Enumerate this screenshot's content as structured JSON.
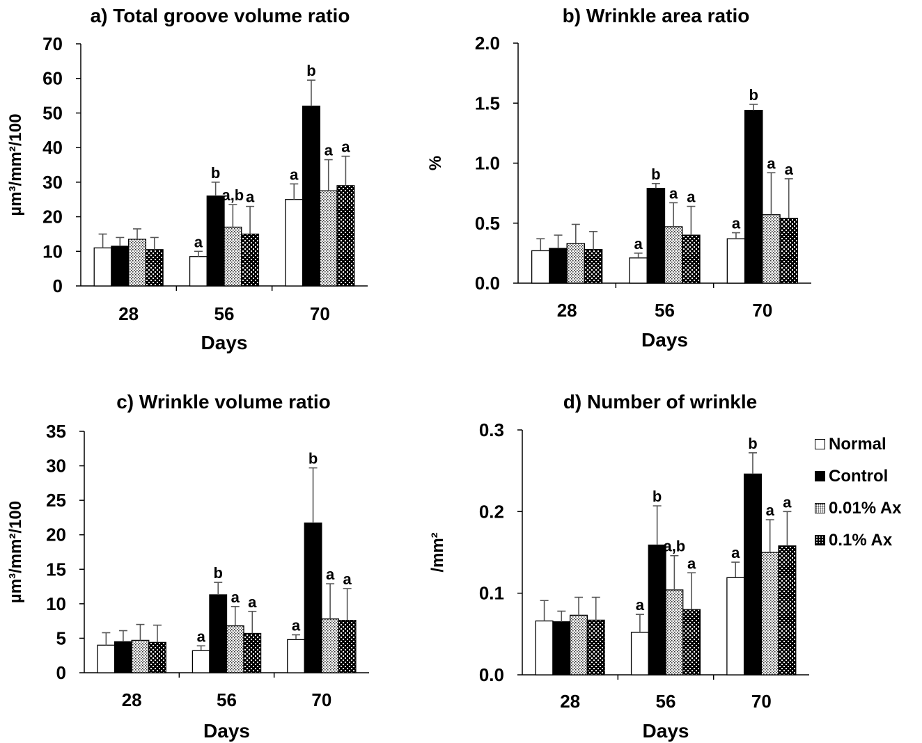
{
  "legend": {
    "items": [
      {
        "label": "Normal",
        "fill": "white"
      },
      {
        "label": "Control",
        "fill": "black"
      },
      {
        "label": "0.01% Ax",
        "fill": "dots"
      },
      {
        "label": "0.1% Ax",
        "fill": "check"
      }
    ]
  },
  "colors": {
    "axis": "#000000",
    "bar_dark": "#000000",
    "bar_light": "#ffffff",
    "error_bar": "#555555"
  },
  "chart_data": [
    {
      "type": "bar",
      "title": "a) Total groove volume ratio",
      "xlabel": "Days",
      "ylabel": "µm³/mm²/100",
      "categories": [
        "28",
        "56",
        "70"
      ],
      "ylim": [
        0,
        70
      ],
      "yticks": [
        "0",
        "10",
        "20",
        "30",
        "40",
        "50",
        "60",
        "70"
      ],
      "series": [
        {
          "name": "Normal",
          "values": [
            11.0,
            8.5,
            25.0
          ],
          "errors": [
            4.0,
            1.5,
            4.5
          ],
          "labels": [
            "",
            "a",
            "a"
          ]
        },
        {
          "name": "Control",
          "values": [
            11.5,
            26.0,
            52.0
          ],
          "errors": [
            2.5,
            4.0,
            7.5
          ],
          "labels": [
            "",
            "b",
            "b"
          ]
        },
        {
          "name": "0.01% Ax",
          "values": [
            13.5,
            17.0,
            27.5
          ],
          "errors": [
            3.0,
            6.5,
            9.0
          ],
          "labels": [
            "",
            "a,b",
            "a"
          ]
        },
        {
          "name": "0.1% Ax",
          "values": [
            10.5,
            15.0,
            29.0
          ],
          "errors": [
            3.5,
            8.0,
            8.5
          ],
          "labels": [
            "",
            "a",
            "a"
          ]
        }
      ]
    },
    {
      "type": "bar",
      "title": "b) Wrinkle area ratio",
      "xlabel": "Days",
      "ylabel": "%",
      "categories": [
        "28",
        "56",
        "70"
      ],
      "ylim": [
        0,
        2.0
      ],
      "yticks": [
        "0.0",
        "0.5",
        "1.0",
        "1.5",
        "2.0"
      ],
      "series": [
        {
          "name": "Normal",
          "values": [
            0.27,
            0.21,
            0.37
          ],
          "errors": [
            0.1,
            0.04,
            0.05
          ],
          "labels": [
            "",
            "a",
            "a"
          ]
        },
        {
          "name": "Control",
          "values": [
            0.29,
            0.79,
            1.44
          ],
          "errors": [
            0.11,
            0.04,
            0.05
          ],
          "labels": [
            "",
            "b",
            "b"
          ]
        },
        {
          "name": "0.01% Ax",
          "values": [
            0.33,
            0.47,
            0.57
          ],
          "errors": [
            0.16,
            0.2,
            0.35
          ],
          "labels": [
            "",
            "a",
            "a"
          ]
        },
        {
          "name": "0.1% Ax",
          "values": [
            0.28,
            0.4,
            0.54
          ],
          "errors": [
            0.15,
            0.24,
            0.33
          ],
          "labels": [
            "",
            "a",
            "a"
          ]
        }
      ]
    },
    {
      "type": "bar",
      "title": "c) Wrinkle volume ratio",
      "xlabel": "Days",
      "ylabel": "µm³/mm²/100",
      "categories": [
        "28",
        "56",
        "70"
      ],
      "ylim": [
        0,
        35
      ],
      "yticks": [
        "0",
        "5",
        "10",
        "15",
        "20",
        "25",
        "30",
        "35"
      ],
      "series": [
        {
          "name": "Normal",
          "values": [
            4.0,
            3.2,
            4.8
          ],
          "errors": [
            1.8,
            0.7,
            0.7
          ],
          "labels": [
            "",
            "a",
            "a"
          ]
        },
        {
          "name": "Control",
          "values": [
            4.5,
            11.3,
            21.7
          ],
          "errors": [
            1.6,
            1.8,
            8.0
          ],
          "labels": [
            "",
            "b",
            "b"
          ]
        },
        {
          "name": "0.01% Ax",
          "values": [
            4.7,
            6.8,
            7.8
          ],
          "errors": [
            2.3,
            2.8,
            5.1
          ],
          "labels": [
            "",
            "a",
            "a"
          ]
        },
        {
          "name": "0.1% Ax",
          "values": [
            4.4,
            5.7,
            7.6
          ],
          "errors": [
            2.5,
            3.2,
            4.6
          ],
          "labels": [
            "",
            "a",
            "a"
          ]
        }
      ]
    },
    {
      "type": "bar",
      "title": "d) Number of wrinkle",
      "xlabel": "Days",
      "ylabel": "/mm²",
      "categories": [
        "28",
        "56",
        "70"
      ],
      "ylim": [
        0,
        0.3
      ],
      "yticks": [
        "0.0",
        "0.1",
        "0.2",
        "0.3"
      ],
      "series": [
        {
          "name": "Normal",
          "values": [
            0.066,
            0.052,
            0.119
          ],
          "errors": [
            0.025,
            0.022,
            0.019
          ],
          "labels": [
            "",
            "a",
            "a"
          ]
        },
        {
          "name": "Control",
          "values": [
            0.065,
            0.159,
            0.246
          ],
          "errors": [
            0.013,
            0.048,
            0.026
          ],
          "labels": [
            "",
            "b",
            "b"
          ]
        },
        {
          "name": "0.01% Ax",
          "values": [
            0.073,
            0.104,
            0.15
          ],
          "errors": [
            0.022,
            0.042,
            0.04
          ],
          "labels": [
            "",
            "a,b",
            "a"
          ]
        },
        {
          "name": "0.1% Ax",
          "values": [
            0.067,
            0.08,
            0.158
          ],
          "errors": [
            0.028,
            0.045,
            0.042
          ],
          "labels": [
            "",
            "a",
            "a"
          ]
        }
      ]
    }
  ]
}
